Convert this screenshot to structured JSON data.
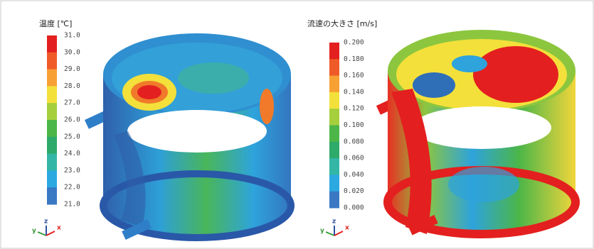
{
  "panels": [
    {
      "title": "温度 [℃]",
      "ticks": [
        "31.0",
        "30.0",
        "29.0",
        "28.0",
        "27.0",
        "26.0",
        "25.0",
        "24.0",
        "23.0",
        "22.0",
        "21.0"
      ],
      "axes": [
        "y",
        "z",
        "x"
      ]
    },
    {
      "title": "流速の大きさ [m/s]",
      "ticks": [
        "0.200",
        "0.180",
        "0.160",
        "0.140",
        "0.120",
        "0.100",
        "0.080",
        "0.060",
        "0.040",
        "0.020",
        "0.000"
      ],
      "axes": [
        "y",
        "z",
        "x"
      ]
    }
  ]
}
